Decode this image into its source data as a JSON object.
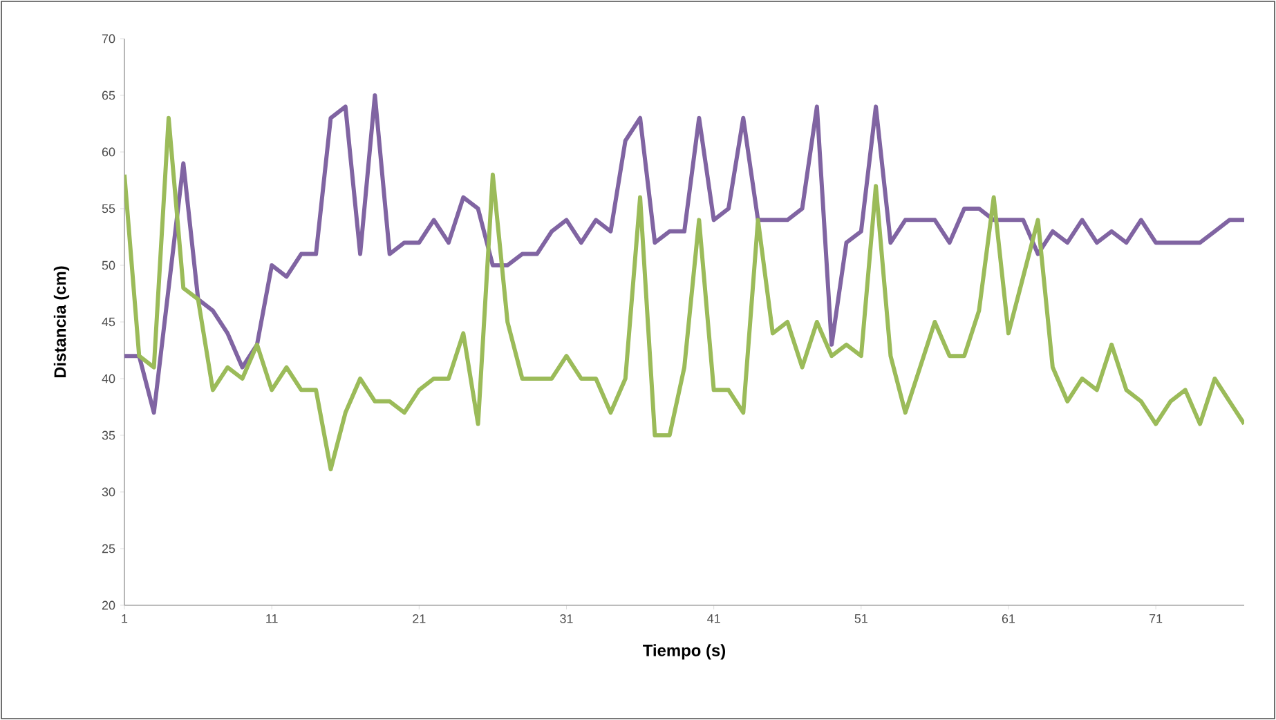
{
  "chart_data": {
    "type": "line",
    "xlabel": "Tiempo (s)",
    "ylabel": "Distancia (cm)",
    "x": [
      1,
      2,
      3,
      4,
      5,
      6,
      7,
      8,
      9,
      10,
      11,
      12,
      13,
      14,
      15,
      16,
      17,
      18,
      19,
      20,
      21,
      22,
      23,
      24,
      25,
      26,
      27,
      28,
      29,
      30,
      31,
      32,
      33,
      34,
      35,
      36,
      37,
      38,
      39,
      40,
      41,
      42,
      43,
      44,
      45,
      46,
      47,
      48,
      49,
      50,
      51,
      52,
      53,
      54,
      55,
      56,
      57,
      58,
      59,
      60,
      61,
      62,
      63,
      64,
      65,
      66,
      67,
      68,
      69,
      70,
      71,
      72,
      73,
      74,
      75,
      76,
      77
    ],
    "series": [
      {
        "color": "#8064a2",
        "values": [
          42,
          42,
          37,
          48,
          59,
          47,
          46,
          44,
          41,
          43,
          50,
          49,
          51,
          51,
          63,
          64,
          51,
          65,
          51,
          52,
          52,
          54,
          52,
          56,
          55,
          50,
          50,
          51,
          51,
          53,
          54,
          52,
          54,
          53,
          61,
          63,
          52,
          53,
          53,
          63,
          54,
          55,
          63,
          54,
          54,
          54,
          55,
          64,
          43,
          52,
          53,
          64,
          52,
          54,
          54,
          54,
          52,
          55,
          55,
          54,
          54,
          54,
          51,
          53,
          52,
          54,
          52,
          53,
          52,
          54,
          52,
          52,
          52,
          52,
          53,
          54,
          54
        ]
      },
      {
        "color": "#9bbb59",
        "values": [
          58,
          42,
          41,
          63,
          48,
          47,
          39,
          41,
          40,
          43,
          39,
          41,
          39,
          39,
          32,
          37,
          40,
          38,
          38,
          37,
          39,
          40,
          40,
          44,
          36,
          58,
          45,
          40,
          40,
          40,
          42,
          40,
          40,
          37,
          40,
          56,
          35,
          35,
          41,
          54,
          39,
          39,
          37,
          54,
          44,
          45,
          41,
          45,
          42,
          43,
          42,
          57,
          42,
          37,
          41,
          45,
          42,
          42,
          46,
          56,
          44,
          49,
          54,
          41,
          38,
          40,
          39,
          43,
          39,
          38,
          36,
          38,
          39,
          36,
          40,
          38,
          36
        ]
      }
    ],
    "xlim": [
      1,
      77
    ],
    "xticks": [
      1,
      11,
      21,
      31,
      41,
      51,
      61,
      71
    ],
    "ylim": [
      20,
      70
    ],
    "yticks": [
      20,
      25,
      30,
      35,
      40,
      45,
      50,
      55,
      60,
      65,
      70
    ],
    "grid": false,
    "marker": "none",
    "line_style": "solid"
  }
}
